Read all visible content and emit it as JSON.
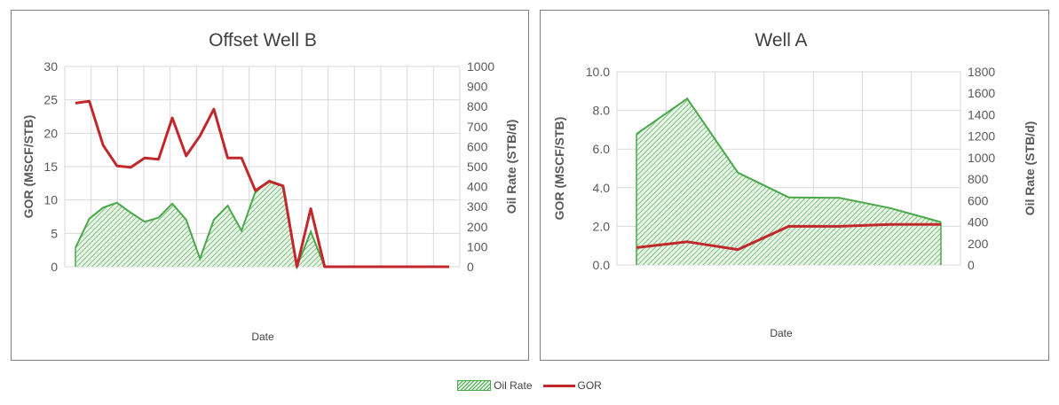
{
  "colors": {
    "oil_rate": "#4aa84a",
    "oil_rate_fill": "#e8f4e8",
    "gor": "#c0282c",
    "grid": "#d9d9d9",
    "frame": "#7f7f7f"
  },
  "legend": {
    "oil_rate_label": "Oil Rate",
    "gor_label": "GOR"
  },
  "chart_data": [
    {
      "type": "area+line",
      "title": "Offset Well B",
      "xlabel": "Date",
      "ylabel_left": "GOR (MSCF/STB)",
      "ylabel_right": "Oil Rate (STB/d)",
      "ylim_left": [
        0,
        30
      ],
      "ylim_right": [
        0,
        1000
      ],
      "yticks_left": [
        "0",
        "5",
        "10",
        "15",
        "20",
        "25",
        "30"
      ],
      "yticks_right": [
        "0",
        "100",
        "200",
        "300",
        "400",
        "500",
        "600",
        "700",
        "800",
        "900",
        "1000"
      ],
      "grid": true,
      "x_count": 28,
      "series": [
        {
          "name": "Oil Rate",
          "axis": "right",
          "kind": "area",
          "values": [
            95,
            240,
            295,
            320,
            270,
            225,
            245,
            315,
            235,
            40,
            235,
            305,
            180,
            375,
            430,
            405,
            0,
            175,
            0,
            0,
            0,
            0,
            0,
            0,
            0,
            0,
            0,
            0
          ]
        },
        {
          "name": "GOR",
          "axis": "left",
          "kind": "line",
          "values": [
            24.5,
            24.8,
            18.2,
            15.1,
            14.9,
            16.3,
            16.1,
            22.3,
            16.6,
            19.6,
            23.6,
            16.3,
            16.3,
            11.4,
            12.8,
            12.1,
            0,
            8.7,
            0,
            0,
            0,
            0,
            0,
            0,
            0,
            0,
            0,
            0
          ]
        }
      ]
    },
    {
      "type": "area+line",
      "title": "Well A",
      "xlabel": "Date",
      "ylabel_left": "GOR (MSCF/STB)",
      "ylabel_right": "Oil Rate (STB/d)",
      "ylim_left": [
        0,
        10
      ],
      "ylim_right": [
        0,
        1800
      ],
      "yticks_left": [
        "0.0",
        "2.0",
        "4.0",
        "6.0",
        "8.0",
        "10.0"
      ],
      "yticks_right": [
        "0",
        "200",
        "400",
        "600",
        "800",
        "1000",
        "1200",
        "1400",
        "1600",
        "1800"
      ],
      "grid": true,
      "x_count": 7,
      "series": [
        {
          "name": "Oil Rate",
          "axis": "right",
          "kind": "area",
          "values": [
            1220,
            1550,
            860,
            630,
            625,
            530,
            400
          ]
        },
        {
          "name": "GOR",
          "axis": "left",
          "kind": "line",
          "values": [
            0.9,
            1.2,
            0.8,
            2.0,
            2.0,
            2.1,
            2.1
          ]
        }
      ]
    }
  ]
}
